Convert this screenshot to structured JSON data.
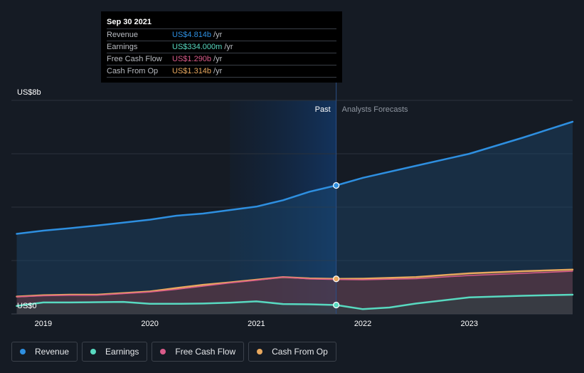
{
  "chart_data": {
    "type": "line",
    "y_axis": {
      "top_label": "US$8b",
      "bottom_label": "US$0",
      "ylim": [
        0,
        8
      ]
    },
    "x_ticks": [
      "2019",
      "2020",
      "2021",
      "2022",
      "2023"
    ],
    "xlim": [
      2018.7,
      2023.97
    ],
    "past_label": "Past",
    "forecast_label": "Analysts Forecasts",
    "divider_x": 2021.75,
    "highlight_start_x": 2020.75,
    "series": [
      {
        "key": "revenue",
        "name": "Revenue",
        "color": "#2e8fe0",
        "x": [
          2018.75,
          2019.0,
          2019.25,
          2019.5,
          2019.75,
          2020.0,
          2020.25,
          2020.5,
          2020.75,
          2021.0,
          2021.25,
          2021.5,
          2021.75,
          2022.0,
          2022.5,
          2023.0,
          2023.5,
          2023.97
        ],
        "values": [
          3.0,
          3.12,
          3.21,
          3.31,
          3.42,
          3.53,
          3.68,
          3.76,
          3.89,
          4.02,
          4.26,
          4.58,
          4.814,
          5.1,
          5.55,
          6.0,
          6.6,
          7.2
        ]
      },
      {
        "key": "earnings",
        "name": "Earnings",
        "color": "#58d9c0",
        "x": [
          2018.75,
          2019.0,
          2019.25,
          2019.5,
          2019.75,
          2020.0,
          2020.25,
          2020.5,
          2020.75,
          2021.0,
          2021.25,
          2021.5,
          2021.75,
          2022.0,
          2022.25,
          2022.5,
          2023.0,
          2023.5,
          2023.97
        ],
        "values": [
          0.3,
          0.43,
          0.43,
          0.44,
          0.45,
          0.38,
          0.38,
          0.39,
          0.42,
          0.47,
          0.37,
          0.36,
          0.334,
          0.18,
          0.24,
          0.39,
          0.62,
          0.68,
          0.72
        ]
      },
      {
        "key": "free_cash_flow",
        "name": "Free Cash Flow",
        "color": "#d95b8a",
        "x": [
          2018.75,
          2019.0,
          2019.25,
          2019.5,
          2019.75,
          2020.0,
          2020.25,
          2020.5,
          2020.75,
          2021.0,
          2021.25,
          2021.5,
          2021.75,
          2022.0,
          2022.5,
          2023.0,
          2023.5,
          2023.97
        ],
        "values": [
          0.64,
          0.68,
          0.7,
          0.7,
          0.76,
          0.82,
          0.92,
          1.04,
          1.16,
          1.26,
          1.38,
          1.31,
          1.29,
          1.28,
          1.32,
          1.44,
          1.52,
          1.6
        ]
      },
      {
        "key": "cash_from_op",
        "name": "Cash From Op",
        "color": "#e8a85e",
        "x": [
          2018.75,
          2019.0,
          2019.25,
          2019.5,
          2019.75,
          2020.0,
          2020.25,
          2020.5,
          2020.75,
          2021.0,
          2021.25,
          2021.5,
          2021.75,
          2022.0,
          2022.5,
          2023.0,
          2023.5,
          2023.97
        ],
        "values": [
          0.65,
          0.7,
          0.72,
          0.72,
          0.78,
          0.84,
          0.97,
          1.09,
          1.18,
          1.28,
          1.38,
          1.33,
          1.314,
          1.32,
          1.38,
          1.52,
          1.6,
          1.66
        ]
      }
    ],
    "highlight_point_x": 2021.75
  },
  "tooltip": {
    "date": "Sep 30 2021",
    "rows": [
      {
        "label": "Revenue",
        "value": "US$4.814b",
        "unit": "/yr",
        "color": "#2e8fe0"
      },
      {
        "label": "Earnings",
        "value": "US$334.000m",
        "unit": "/yr",
        "color": "#58d9c0"
      },
      {
        "label": "Free Cash Flow",
        "value": "US$1.290b",
        "unit": "/yr",
        "color": "#d95b8a"
      },
      {
        "label": "Cash From Op",
        "value": "US$1.314b",
        "unit": "/yr",
        "color": "#e8a85e"
      }
    ]
  },
  "legend": [
    {
      "label": "Revenue",
      "color": "#2e8fe0"
    },
    {
      "label": "Earnings",
      "color": "#58d9c0"
    },
    {
      "label": "Free Cash Flow",
      "color": "#d95b8a"
    },
    {
      "label": "Cash From Op",
      "color": "#e8a85e"
    }
  ]
}
